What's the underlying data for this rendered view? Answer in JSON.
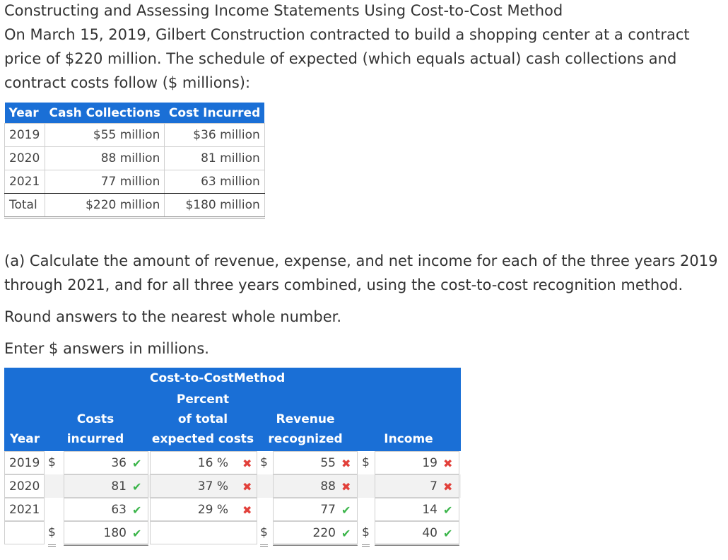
{
  "title": "Constructing and Assessing Income Statements Using Cost-to-Cost Method",
  "intro": "On March 15, 2019, Gilbert Construction contracted to build a shopping center at a contract price of $220 million. The schedule of expected (which equals actual) cash collections and contract costs follow ($ millions):",
  "schedule": {
    "headers": [
      "Year",
      "Cash Collections",
      "Cost Incurred"
    ],
    "rows": [
      [
        "2019",
        "$55 million",
        "$36 million"
      ],
      [
        "2020",
        "88 million",
        "81 million"
      ],
      [
        "2021",
        "77 million",
        "63 million"
      ],
      [
        "Total",
        "$220 million",
        "$180 million"
      ]
    ]
  },
  "question": "(a) Calculate the amount of revenue, expense, and net income for each of the three years 2019 through 2021, and for all three years combined, using the cost-to-cost recognition method.",
  "round_note": "Round answers to the nearest whole number.",
  "enter_note": "Enter $ answers in millions.",
  "answer_table": {
    "group_header": "Cost-to-CostMethod",
    "headers": {
      "year": "Year",
      "costs_l1": "Costs",
      "costs_l2": "incurred",
      "pct_l1": "Percent",
      "pct_l2": "of total",
      "pct_l3": "expected costs",
      "rev_l1": "Revenue",
      "rev_l2": "recognized",
      "income": "Income"
    },
    "currency": "$",
    "percent_sign": "%",
    "marks": {
      "correct": "✔",
      "incorrect": "✖"
    },
    "rows": [
      {
        "year": "2019",
        "costs": "36",
        "costs_ok": true,
        "pct": "16",
        "pct_ok": false,
        "rev": "55",
        "rev_ok": false,
        "income": "19",
        "income_ok": false
      },
      {
        "year": "2020",
        "costs": "81",
        "costs_ok": true,
        "pct": "37",
        "pct_ok": false,
        "rev": "88",
        "rev_ok": false,
        "income": "7",
        "income_ok": false
      },
      {
        "year": "2021",
        "costs": "63",
        "costs_ok": true,
        "pct": "29",
        "pct_ok": false,
        "rev": "77",
        "rev_ok": true,
        "income": "14",
        "income_ok": true
      },
      {
        "year": "",
        "costs": "180",
        "costs_ok": true,
        "pct": "",
        "pct_ok": null,
        "rev": "220",
        "rev_ok": true,
        "income": "40",
        "income_ok": true
      }
    ]
  }
}
